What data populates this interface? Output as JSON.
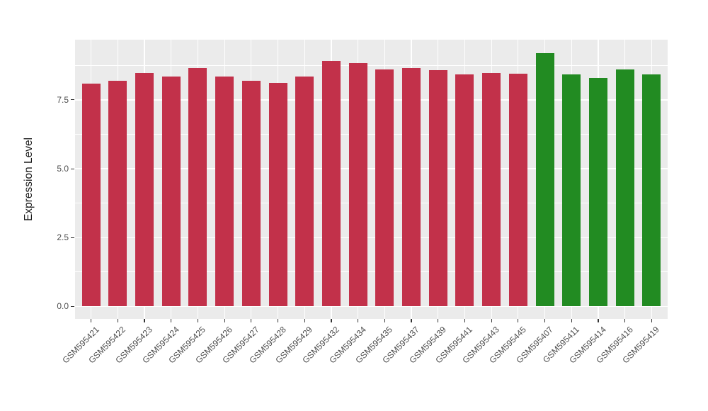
{
  "figure": {
    "background": "#FFFFFF",
    "panel_background": "#EBEBEB",
    "gridline_color": "#FFFFFF",
    "tick_color": "#333333",
    "tick_label_color": "#4D4D4D",
    "axis_title_color": "#1A1A1A"
  },
  "chart_data": {
    "type": "bar",
    "title": "",
    "xlabel": "",
    "ylabel": "Expression Level",
    "ylim": [
      -0.45,
      9.68
    ],
    "yticks": [
      0,
      2.5,
      5,
      7.5
    ],
    "ytick_labels": [
      "0.0",
      "2.5",
      "5.0",
      "7.5"
    ],
    "minor_gridlines": [
      1.25,
      3.75,
      6.25,
      8.75
    ],
    "grid": "major-and-minor, white on gray panel (ggplot style)",
    "legend_position": "none",
    "x_label_angle_deg": 45,
    "bar_width_fraction": 0.7,
    "groups": [
      {
        "name": "group-red",
        "color": "#C2314A"
      },
      {
        "name": "group-green",
        "color": "#228B22"
      }
    ],
    "categories": [
      "GSM595421",
      "GSM595422",
      "GSM595423",
      "GSM595424",
      "GSM595425",
      "GSM595426",
      "GSM595427",
      "GSM595428",
      "GSM595429",
      "GSM595432",
      "GSM595434",
      "GSM595435",
      "GSM595437",
      "GSM595439",
      "GSM595441",
      "GSM595443",
      "GSM595445",
      "GSM595407",
      "GSM595411",
      "GSM595414",
      "GSM595416",
      "GSM595419"
    ],
    "values": [
      8.08,
      8.19,
      8.48,
      8.34,
      8.65,
      8.35,
      8.18,
      8.12,
      8.35,
      8.92,
      8.82,
      8.61,
      8.66,
      8.57,
      8.42,
      8.47,
      8.44,
      9.2,
      8.41,
      8.29,
      8.6,
      8.42
    ],
    "bar_group_index": [
      0,
      0,
      0,
      0,
      0,
      0,
      0,
      0,
      0,
      0,
      0,
      0,
      0,
      0,
      0,
      0,
      0,
      1,
      1,
      1,
      1,
      1
    ]
  }
}
